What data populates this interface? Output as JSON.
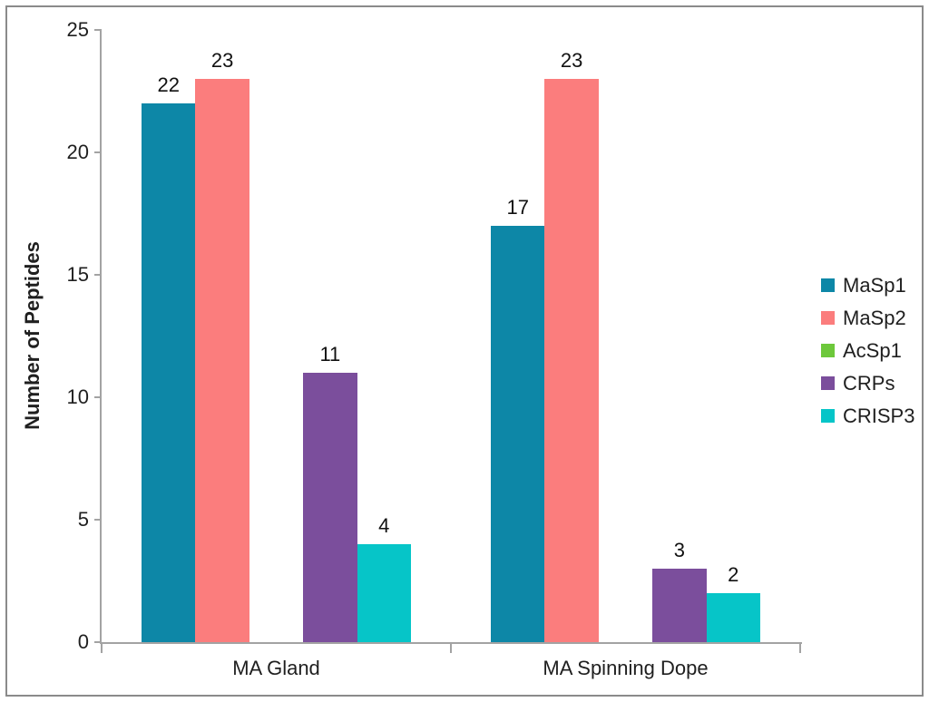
{
  "chart_data": {
    "type": "bar",
    "title": "",
    "xlabel": "",
    "ylabel": "Number of Peptides",
    "categories": [
      "MA Gland",
      "MA Spinning Dope"
    ],
    "series": [
      {
        "name": "MaSp1",
        "color": "#0d87a7",
        "values": [
          22,
          17
        ]
      },
      {
        "name": "MaSp2",
        "color": "#fb7d7d",
        "values": [
          23,
          23
        ]
      },
      {
        "name": "AcSp1",
        "color": "#6dc83b",
        "values": [
          0,
          0
        ]
      },
      {
        "name": "CRPs",
        "color": "#7b4e9c",
        "values": [
          11,
          3
        ]
      },
      {
        "name": "CRISP3",
        "color": "#06c5c8",
        "values": [
          4,
          2
        ]
      }
    ],
    "ylim": [
      0,
      25
    ],
    "yticks": [
      0,
      5,
      10,
      15,
      20,
      25
    ],
    "bar_value_labels_shown": true,
    "grid": false,
    "legend_position": "right"
  },
  "colors": {
    "axis": "#a3a3a3",
    "text": "#1f1f1f",
    "figure_border": "#8a8a8a",
    "background": "#ffffff"
  }
}
